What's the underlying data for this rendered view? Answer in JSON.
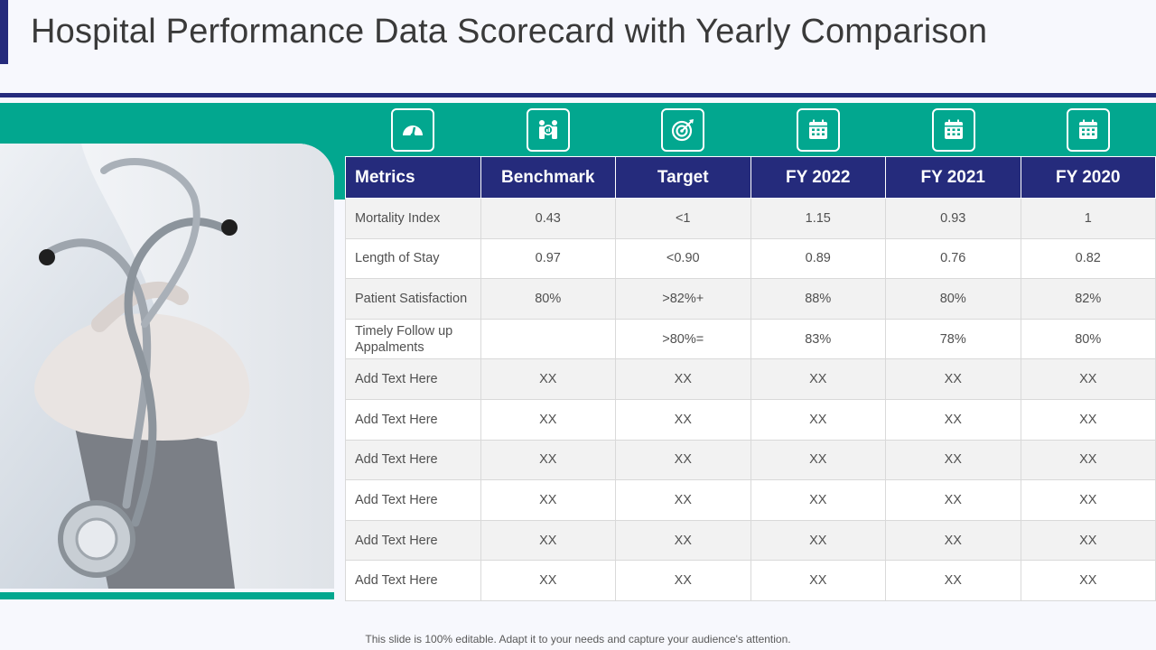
{
  "title": "Hospital Performance Data Scorecard with Yearly Comparison",
  "icons": [
    "gauge-icon",
    "team-icon",
    "target-icon",
    "calendar-icon",
    "calendar-icon",
    "calendar-icon"
  ],
  "table": {
    "headers": [
      "Metrics",
      "Benchmark",
      "Target",
      "FY 2022",
      "FY 2021",
      "FY 2020"
    ],
    "rows": [
      [
        "Mortality Index",
        "0.43",
        "<1",
        "1.15",
        "0.93",
        "1"
      ],
      [
        "Length of Stay",
        "0.97",
        "<0.90",
        "0.89",
        "0.76",
        "0.82"
      ],
      [
        "Patient Satisfaction",
        "80%",
        ">82%+",
        "88%",
        "80%",
        "82%"
      ],
      [
        "Timely Follow up Appalments",
        "",
        ">80%=",
        "83%",
        "78%",
        "80%"
      ],
      [
        "Add Text Here",
        "XX",
        "XX",
        "XX",
        "XX",
        "XX"
      ],
      [
        "Add Text Here",
        "XX",
        "XX",
        "XX",
        "XX",
        "XX"
      ],
      [
        "Add Text Here",
        "XX",
        "XX",
        "XX",
        "XX",
        "XX"
      ],
      [
        "Add Text Here",
        "XX",
        "XX",
        "XX",
        "XX",
        "XX"
      ],
      [
        "Add Text Here",
        "XX",
        "XX",
        "XX",
        "XX",
        "XX"
      ],
      [
        "Add Text Here",
        "XX",
        "XX",
        "XX",
        "XX",
        "XX"
      ]
    ]
  },
  "footer": "This slide is 100% editable. Adapt it to your needs and capture your audience's attention.",
  "colors": {
    "navy": "#252b7c",
    "teal": "#02a78f"
  }
}
